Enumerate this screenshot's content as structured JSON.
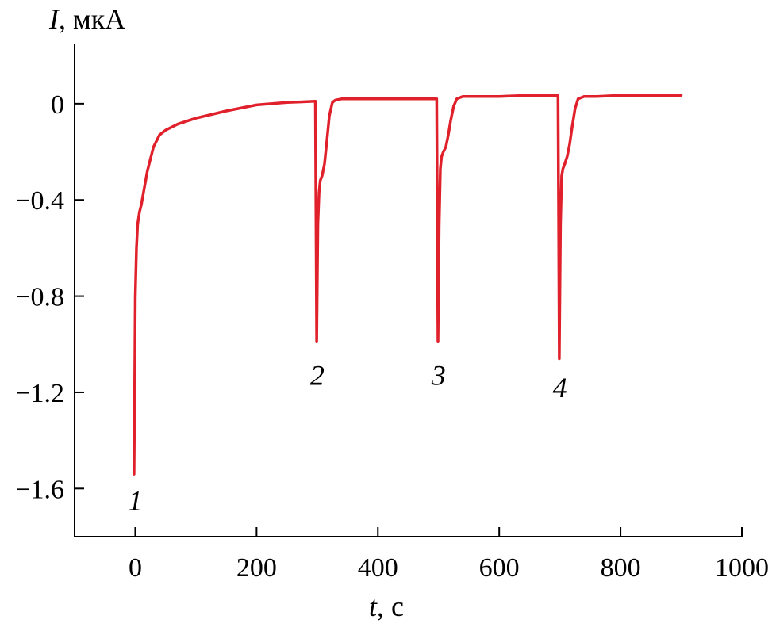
{
  "chart_data": {
    "type": "line",
    "title": "",
    "xlabel": {
      "var": "t",
      "unit": ", с"
    },
    "ylabel": {
      "var": "I",
      "unit": ", мкА"
    },
    "xlim": [
      -100,
      1000
    ],
    "ylim": [
      -1.8,
      0.25
    ],
    "xticks": [
      0,
      200,
      400,
      600,
      800,
      1000
    ],
    "xtick_labels": [
      "0",
      "200",
      "400",
      "600",
      "800",
      "1000"
    ],
    "yticks": [
      0,
      -0.4,
      -0.8,
      -1.2,
      -1.6
    ],
    "ytick_labels": [
      "0",
      "−0.4",
      "−0.8",
      "−1.2",
      "−1.6"
    ],
    "grid": false,
    "series": [
      {
        "color": "#e0202a",
        "x": [
          -2,
          -1,
          0,
          2,
          4,
          7,
          10,
          15,
          20,
          30,
          40,
          50,
          70,
          100,
          150,
          200,
          250,
          297,
          298,
          299,
          301,
          303,
          305,
          308,
          312,
          316,
          320,
          325,
          330,
          340,
          360,
          400,
          450,
          497,
          498,
          499,
          501,
          503,
          505,
          508,
          512,
          516,
          520,
          525,
          530,
          540,
          560,
          600,
          650,
          697,
          698,
          699,
          701,
          703,
          705,
          708,
          712,
          716,
          720,
          725,
          730,
          740,
          760,
          800,
          850,
          900
        ],
        "y": [
          -1.54,
          -1.2,
          -0.8,
          -0.6,
          -0.5,
          -0.45,
          -0.42,
          -0.35,
          -0.28,
          -0.18,
          -0.13,
          -0.11,
          -0.085,
          -0.06,
          -0.03,
          -0.005,
          0.005,
          0.01,
          -0.5,
          -0.99,
          -0.5,
          -0.37,
          -0.32,
          -0.3,
          -0.25,
          -0.15,
          -0.05,
          0.005,
          0.015,
          0.02,
          0.02,
          0.02,
          0.02,
          0.02,
          -0.5,
          -0.99,
          -0.5,
          -0.27,
          -0.22,
          -0.2,
          -0.18,
          -0.13,
          -0.07,
          -0.01,
          0.02,
          0.03,
          0.03,
          0.03,
          0.035,
          0.035,
          -0.5,
          -1.06,
          -0.5,
          -0.3,
          -0.27,
          -0.25,
          -0.22,
          -0.17,
          -0.1,
          -0.02,
          0.02,
          0.03,
          0.03,
          0.035,
          0.035,
          0.035
        ]
      }
    ],
    "annotations": [
      {
        "text": "1",
        "x": 0,
        "y": -1.65
      },
      {
        "text": "2",
        "x": 300,
        "y": -1.13
      },
      {
        "text": "3",
        "x": 500,
        "y": -1.13
      },
      {
        "text": "4",
        "x": 700,
        "y": -1.18
      }
    ]
  }
}
